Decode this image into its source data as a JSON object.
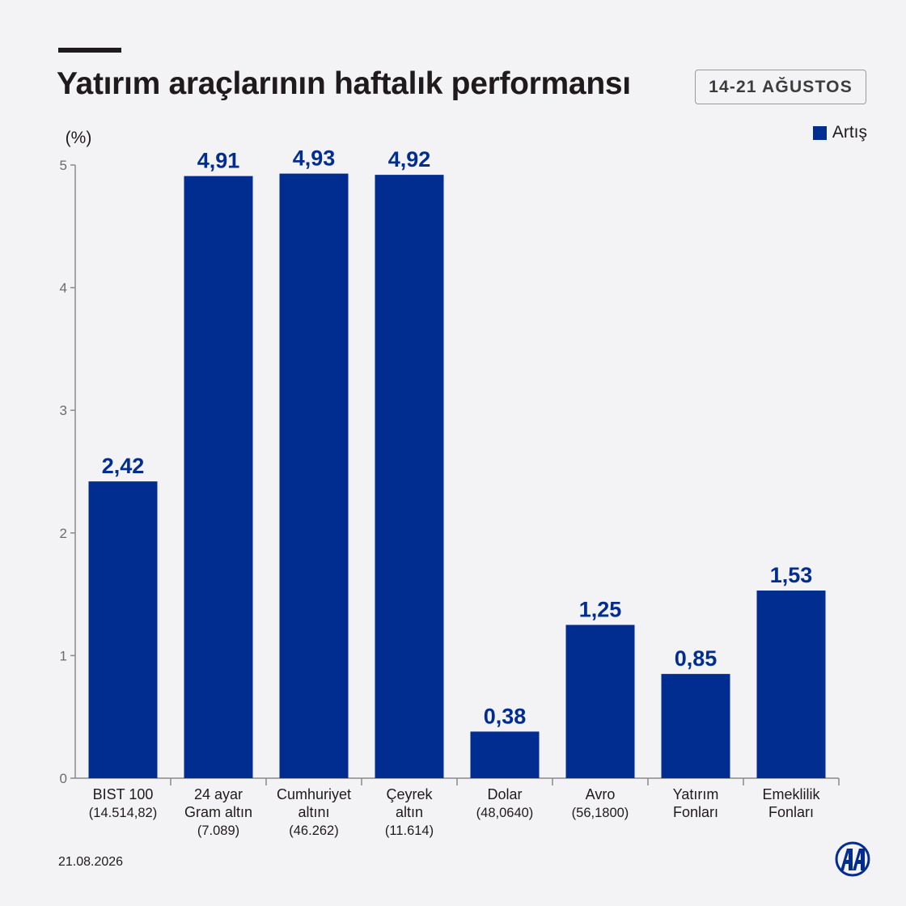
{
  "header": {
    "title": "Yatırım araçlarının haftalık performansı",
    "date_range": "14-21 AĞUSTOS"
  },
  "footer": {
    "date": "21.08.2026"
  },
  "colors": {
    "bar": "#002d8f",
    "text": "#1f1a1c",
    "axis": "#8a8a8a"
  },
  "chart_data": {
    "type": "bar",
    "ylabel": "(%)",
    "ylim": [
      0,
      5
    ],
    "y_ticks": [
      "0",
      "1",
      "2",
      "3",
      "4",
      "5"
    ],
    "legend": {
      "placement": "top-right",
      "entries": [
        "Artış"
      ]
    },
    "grid": false,
    "categories": [
      {
        "lines": [
          "BIST 100"
        ],
        "sub": "(14.514,82)"
      },
      {
        "lines": [
          "24 ayar",
          "Gram altın"
        ],
        "sub": "(7.089)"
      },
      {
        "lines": [
          "Cumhuriyet",
          "altını"
        ],
        "sub": "(46.262)"
      },
      {
        "lines": [
          "Çeyrek",
          "altın"
        ],
        "sub": "(11.614)"
      },
      {
        "lines": [
          "Dolar"
        ],
        "sub": "(48,0640)"
      },
      {
        "lines": [
          "Avro"
        ],
        "sub": "(56,1800)"
      },
      {
        "lines": [
          "Yatırım",
          "Fonları"
        ],
        "sub": ""
      },
      {
        "lines": [
          "Emeklilik",
          "Fonları"
        ],
        "sub": ""
      }
    ],
    "series": [
      {
        "name": "Artış",
        "values": [
          2.42,
          4.91,
          4.93,
          4.92,
          0.38,
          1.25,
          0.85,
          1.53
        ],
        "labels": [
          "2,42",
          "4,91",
          "4,93",
          "4,92",
          "0,38",
          "1,25",
          "0,85",
          "1,53"
        ]
      }
    ]
  }
}
